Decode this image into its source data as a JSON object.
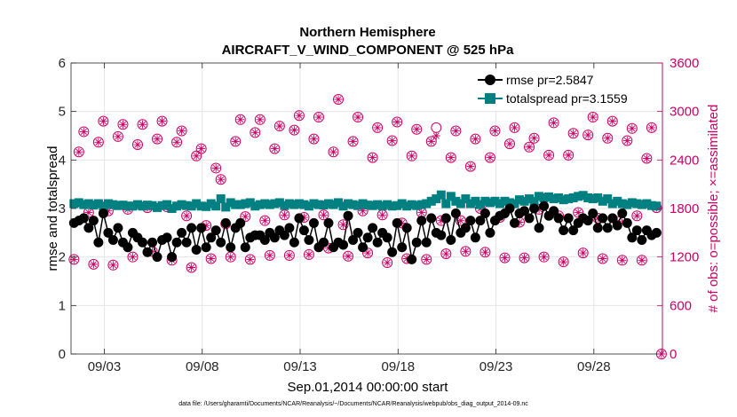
{
  "chart_data": {
    "type": "line",
    "title": "Northern Hemisphere",
    "subtitle": "AIRCRAFT_V_WIND_COMPONENT @ 525 hPa",
    "xlabel": "Sep.01,2014 00:00:00 start",
    "ylabel_left": "rmse and totalspread",
    "ylabel_right": "# of obs: o=possible; ×=assimilated",
    "footnote": "data file: /Users/gharamti/Documents/NCAR/Reanalysis/~/Documents/NCAR/Reanalysis/webpub/obs_diag_output_2014-09.nc",
    "xlim": [
      1.3,
      31.5
    ],
    "ylim_left": [
      0,
      6
    ],
    "ylim_right": [
      0,
      3600
    ],
    "xticks": [
      {
        "value": 3,
        "label": "09/03"
      },
      {
        "value": 8,
        "label": "09/08"
      },
      {
        "value": 13,
        "label": "09/13"
      },
      {
        "value": 18,
        "label": "09/18"
      },
      {
        "value": 23,
        "label": "09/23"
      },
      {
        "value": 28,
        "label": "09/28"
      }
    ],
    "yticks_left": [
      "0",
      "1",
      "2",
      "3",
      "4",
      "5",
      "6"
    ],
    "yticks_right": [
      "0",
      "600",
      "1200",
      "1800",
      "2400",
      "3000",
      "3600"
    ],
    "colors": {
      "rmse": "#000000",
      "spread": "#008080",
      "obs": "#cc0066",
      "grid": "#e6e6e6",
      "axis": "#262626"
    },
    "legend": [
      {
        "label": "rmse pr=2.5847",
        "series": "rmse"
      },
      {
        "label": "totalspread pr=3.1559",
        "series": "spread"
      }
    ],
    "series": [
      {
        "name": "rmse",
        "x": [
          1.45,
          1.7,
          1.95,
          2.2,
          2.45,
          2.7,
          2.95,
          3.2,
          3.45,
          3.7,
          3.95,
          4.2,
          4.45,
          4.7,
          4.95,
          5.2,
          5.45,
          5.7,
          5.95,
          6.2,
          6.45,
          6.7,
          6.95,
          7.2,
          7.45,
          7.7,
          7.95,
          8.2,
          8.45,
          8.7,
          8.95,
          9.2,
          9.45,
          9.7,
          9.95,
          10.2,
          10.45,
          10.7,
          10.95,
          11.2,
          11.45,
          11.7,
          11.95,
          12.2,
          12.45,
          12.7,
          12.95,
          13.2,
          13.45,
          13.7,
          13.95,
          14.2,
          14.45,
          14.7,
          14.95,
          15.2,
          15.45,
          15.7,
          15.95,
          16.2,
          16.45,
          16.7,
          16.95,
          17.2,
          17.45,
          17.7,
          17.95,
          18.2,
          18.45,
          18.7,
          18.95,
          19.2,
          19.45,
          19.7,
          19.95,
          20.2,
          20.45,
          20.7,
          20.95,
          21.2,
          21.45,
          21.7,
          21.95,
          22.2,
          22.45,
          22.7,
          22.95,
          23.2,
          23.45,
          23.7,
          23.95,
          24.2,
          24.45,
          24.7,
          24.95,
          25.2,
          25.45,
          25.7,
          25.95,
          26.2,
          26.45,
          26.7,
          26.95,
          27.2,
          27.45,
          27.7,
          27.95,
          28.2,
          28.45,
          28.7,
          28.95,
          29.2,
          29.45,
          29.7,
          29.95,
          30.2,
          30.45,
          30.7,
          30.95,
          31.2
        ],
        "values": [
          2.7,
          2.75,
          2.8,
          2.6,
          2.75,
          2.3,
          2.9,
          2.5,
          2.35,
          2.6,
          2.3,
          2.2,
          2.5,
          2.4,
          2.3,
          2.1,
          2.3,
          2.0,
          2.35,
          2.4,
          2.0,
          2.3,
          2.5,
          2.3,
          2.6,
          2.15,
          2.6,
          2.2,
          2.4,
          2.55,
          2.3,
          2.7,
          2.2,
          2.6,
          2.7,
          2.2,
          2.4,
          2.45,
          2.45,
          2.35,
          2.5,
          2.4,
          2.55,
          2.45,
          2.6,
          2.3,
          2.8,
          2.55,
          2.35,
          2.7,
          2.2,
          2.3,
          2.7,
          2.2,
          2.3,
          2.25,
          2.85,
          2.35,
          2.5,
          2.2,
          2.4,
          2.6,
          2.3,
          2.5,
          2.4,
          2.1,
          2.7,
          2.2,
          2.6,
          1.95,
          2.3,
          2.75,
          2.3,
          2.8,
          2.5,
          2.45,
          2.8,
          2.35,
          2.9,
          2.5,
          2.6,
          2.75,
          2.4,
          2.75,
          2.9,
          2.5,
          2.75,
          2.85,
          2.9,
          3.0,
          2.7,
          2.9,
          2.95,
          2.8,
          3.0,
          2.6,
          3.05,
          2.85,
          2.95,
          2.8,
          2.55,
          2.8,
          2.55,
          2.7,
          2.8,
          2.75,
          2.9,
          2.6,
          2.8,
          2.6,
          2.8,
          2.65,
          2.9,
          2.7,
          2.4,
          2.55,
          2.35,
          2.55,
          2.45,
          2.5
        ]
      },
      {
        "name": "totalspread",
        "x": [
          1.45,
          1.7,
          1.95,
          2.2,
          2.45,
          2.7,
          2.95,
          3.2,
          3.45,
          3.7,
          3.95,
          4.2,
          4.45,
          4.7,
          4.95,
          5.2,
          5.45,
          5.7,
          5.95,
          6.2,
          6.45,
          6.7,
          6.95,
          7.2,
          7.45,
          7.7,
          7.95,
          8.2,
          8.45,
          8.7,
          8.95,
          9.2,
          9.45,
          9.7,
          9.95,
          10.2,
          10.45,
          10.7,
          10.95,
          11.2,
          11.45,
          11.7,
          11.95,
          12.2,
          12.45,
          12.7,
          12.95,
          13.2,
          13.45,
          13.7,
          13.95,
          14.2,
          14.45,
          14.7,
          14.95,
          15.2,
          15.45,
          15.7,
          15.95,
          16.2,
          16.45,
          16.7,
          16.95,
          17.2,
          17.45,
          17.7,
          17.95,
          18.2,
          18.45,
          18.7,
          18.95,
          19.2,
          19.45,
          19.7,
          19.95,
          20.2,
          20.45,
          20.7,
          20.95,
          21.2,
          21.45,
          21.7,
          21.95,
          22.2,
          22.45,
          22.7,
          22.95,
          23.2,
          23.45,
          23.7,
          23.95,
          24.2,
          24.45,
          24.7,
          24.95,
          25.2,
          25.45,
          25.7,
          25.95,
          26.2,
          26.45,
          26.7,
          26.95,
          27.2,
          27.45,
          27.7,
          27.95,
          28.2,
          28.45,
          28.7,
          28.95,
          29.2,
          29.45,
          29.7,
          29.95,
          30.2,
          30.45,
          30.7,
          30.95,
          31.2
        ],
        "values": [
          3.1,
          3.12,
          3.08,
          3.1,
          3.07,
          3.1,
          3.05,
          3.1,
          3.08,
          3.06,
          3.07,
          3.05,
          3.05,
          3.08,
          3.05,
          3.07,
          3.06,
          3.02,
          3.06,
          3.08,
          3.0,
          3.05,
          3.08,
          3.06,
          3.05,
          3.1,
          3.05,
          3.04,
          3.1,
          3.05,
          3.2,
          3.03,
          3.12,
          3.08,
          3.08,
          3.1,
          3.12,
          3.05,
          3.08,
          3.1,
          3.08,
          3.1,
          3.12,
          3.06,
          3.1,
          3.08,
          3.1,
          3.08,
          3.05,
          3.1,
          3.08,
          3.07,
          3.1,
          3.08,
          3.12,
          3.05,
          3.1,
          3.08,
          3.06,
          3.1,
          3.07,
          3.06,
          3.08,
          3.05,
          3.08,
          3.05,
          3.06,
          3.1,
          3.05,
          3.08,
          3.06,
          3.08,
          3.1,
          3.15,
          3.2,
          3.28,
          3.1,
          3.25,
          3.15,
          3.1,
          3.2,
          3.1,
          3.15,
          3.08,
          3.15,
          3.12,
          3.15,
          3.1,
          3.15,
          3.12,
          3.1,
          3.18,
          3.15,
          3.2,
          3.15,
          3.25,
          3.22,
          3.24,
          3.2,
          3.22,
          3.18,
          3.2,
          3.22,
          3.25,
          3.27,
          3.22,
          3.2,
          3.22,
          3.15,
          3.2,
          3.1,
          3.15,
          3.1,
          3.08,
          3.12,
          3.1,
          3.08,
          3.1,
          3.06,
          3.05
        ]
      },
      {
        "name": "obs_possible",
        "x": [
          1.45,
          1.7,
          1.95,
          2.2,
          2.45,
          2.7,
          2.95,
          3.2,
          3.45,
          3.7,
          3.95,
          4.2,
          4.45,
          4.7,
          4.95,
          5.2,
          5.45,
          5.7,
          5.95,
          6.2,
          6.45,
          6.7,
          6.95,
          7.2,
          7.45,
          7.7,
          7.95,
          8.2,
          8.45,
          8.7,
          8.95,
          9.2,
          9.45,
          9.7,
          9.95,
          10.2,
          10.45,
          10.7,
          10.95,
          11.2,
          11.45,
          11.7,
          11.95,
          12.2,
          12.45,
          12.7,
          12.95,
          13.2,
          13.45,
          13.7,
          13.95,
          14.2,
          14.45,
          14.7,
          14.95,
          15.2,
          15.45,
          15.7,
          15.95,
          16.2,
          16.45,
          16.7,
          16.95,
          17.2,
          17.45,
          17.7,
          17.95,
          18.2,
          18.45,
          18.7,
          18.95,
          19.2,
          19.45,
          19.7,
          19.95,
          20.2,
          20.45,
          20.7,
          20.95,
          21.2,
          21.45,
          21.7,
          21.95,
          22.2,
          22.45,
          22.7,
          22.95,
          23.2,
          23.45,
          23.7,
          23.95,
          24.2,
          24.45,
          24.7,
          24.95,
          25.2,
          25.45,
          25.7,
          25.95,
          26.2,
          26.45,
          26.7,
          26.95,
          27.2,
          27.45,
          27.7,
          27.95,
          28.2,
          28.45,
          28.7,
          28.95,
          29.2,
          29.45,
          29.7,
          29.95,
          30.2,
          30.45,
          30.7,
          30.95,
          31.2,
          31.45
        ],
        "values": [
          1170,
          2500,
          2750,
          1750,
          1110,
          2620,
          2880,
          1770,
          1100,
          2690,
          2840,
          1790,
          1200,
          2590,
          2840,
          1810,
          1270,
          2660,
          2880,
          1820,
          1160,
          2620,
          2760,
          1710,
          1070,
          2450,
          2540,
          1590,
          1180,
          2300,
          2160,
          1610,
          1200,
          2630,
          2900,
          1700,
          1170,
          2740,
          2900,
          1650,
          1220,
          2540,
          2820,
          1720,
          1220,
          2770,
          2950,
          1690,
          1230,
          2660,
          2930,
          1720,
          1310,
          2500,
          3150,
          1600,
          1210,
          2630,
          2930,
          1770,
          1250,
          2430,
          2800,
          1720,
          1130,
          2640,
          2870,
          1620,
          1180,
          2450,
          2780,
          1750,
          1170,
          2630,
          2800,
          1650,
          1240,
          2430,
          2760,
          1650,
          1270,
          2320,
          2660,
          1800,
          1260,
          2430,
          2760,
          1690,
          1190,
          2600,
          2800,
          1630,
          1190,
          2560,
          2670,
          1790,
          1200,
          2460,
          2860,
          1710,
          1140,
          2460,
          2730,
          1750,
          1250,
          2710,
          2930,
          1680,
          1180,
          2670,
          2880,
          1640,
          1160,
          2640,
          2790,
          1710,
          1160,
          2420,
          2800,
          1810,
          0
        ],
        "assimilated": [
          1170,
          2500,
          2750,
          1750,
          1110,
          2620,
          2880,
          1770,
          1100,
          2690,
          2840,
          1790,
          1200,
          2590,
          2840,
          1810,
          1270,
          2660,
          2880,
          1820,
          1160,
          2620,
          2760,
          1710,
          1070,
          2450,
          2540,
          1590,
          1180,
          2300,
          2160,
          1610,
          1200,
          2630,
          2900,
          1700,
          1170,
          2740,
          2900,
          1650,
          1220,
          2540,
          2820,
          1720,
          1220,
          2770,
          2950,
          1690,
          1230,
          2660,
          2930,
          1720,
          1310,
          2500,
          3150,
          1600,
          1210,
          2630,
          2930,
          1770,
          1250,
          2430,
          2800,
          1720,
          1130,
          2640,
          2870,
          1620,
          1180,
          2450,
          2780,
          1750,
          1170,
          2630,
          2700,
          1650,
          1240,
          2430,
          2760,
          1650,
          1270,
          2320,
          2660,
          1800,
          1260,
          2430,
          2760,
          1690,
          1190,
          2600,
          2800,
          1630,
          1190,
          2560,
          2670,
          1790,
          1200,
          2460,
          2860,
          1710,
          1140,
          2460,
          2730,
          1750,
          1250,
          2710,
          2930,
          1680,
          1180,
          2670,
          2880,
          1640,
          1160,
          2640,
          2790,
          1710,
          1160,
          2420,
          2800,
          1810,
          0
        ]
      }
    ]
  }
}
